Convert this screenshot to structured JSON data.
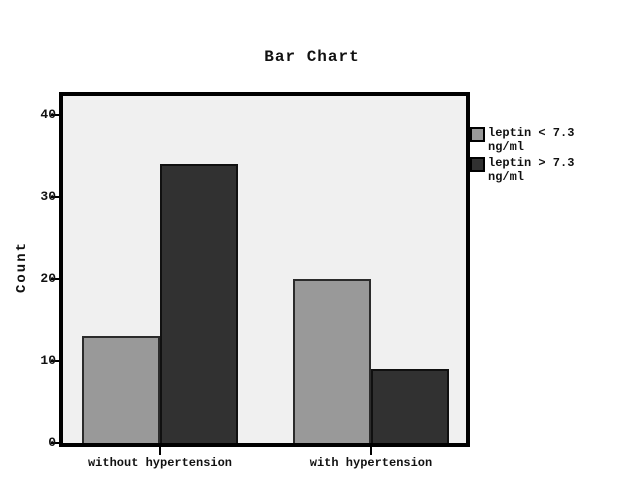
{
  "chart_data": {
    "type": "bar",
    "title": "Bar Chart",
    "categories": [
      "without hypertension",
      "with hypertension"
    ],
    "series": [
      {
        "name": "leptin < 7.3 ng/ml",
        "legend_lines": [
          "leptin < 7.3",
          "ng/ml"
        ],
        "color": "#999999",
        "values": [
          13,
          20
        ]
      },
      {
        "name": "leptin > 7.3 ng/ml",
        "legend_lines": [
          "leptin > 7.3",
          "ng/ml"
        ],
        "color": "#313131",
        "values": [
          34,
          9
        ]
      }
    ],
    "xlabel": "",
    "ylabel": "Count",
    "yticks": [
      0,
      10,
      20,
      30,
      40
    ],
    "ylim": [
      0,
      42.3
    ],
    "grid": false,
    "legend_position": "right",
    "plot_background": "#f0f0f0"
  }
}
